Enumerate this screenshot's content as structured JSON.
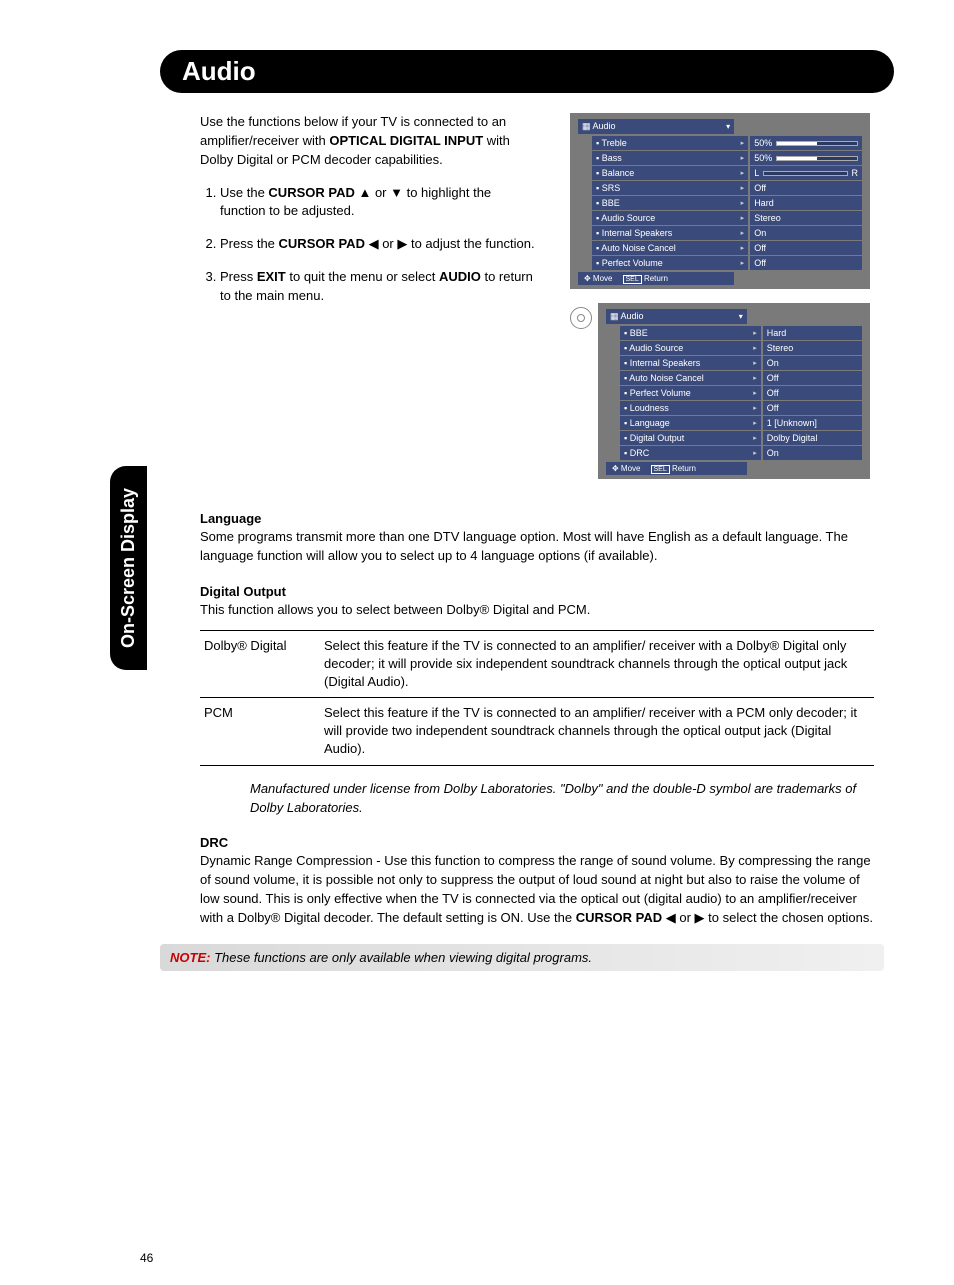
{
  "page": {
    "banner_title": "Audio",
    "side_tab": "On-Screen Display",
    "page_number": "46"
  },
  "intro": {
    "text_pre": "Use the functions below if your TV is connected to an amplifier/receiver with ",
    "text_bold": "OPTICAL DIGITAL INPUT",
    "text_post": " with Dolby Digital or PCM decoder capabilities."
  },
  "steps": [
    {
      "pre": "Use the ",
      "b1": "CURSOR PAD",
      "sym1": " ▲ or ▼ ",
      "post": "to highlight the function to be adjusted."
    },
    {
      "pre": "Press the ",
      "b1": "CURSOR PAD",
      "sym1": " ◀ or ▶ ",
      "post": "to adjust the function."
    },
    {
      "pre": "Press ",
      "b1": "EXIT",
      "mid": " to quit the menu or select ",
      "b2": "AUDIO",
      "post": " to return to the main menu."
    }
  ],
  "osd1": {
    "title": "Audio",
    "rows": [
      {
        "label": "Treble",
        "type": "bar",
        "text": "50%",
        "fill": 50
      },
      {
        "label": "Bass",
        "type": "bar",
        "text": "50%",
        "fill": 50
      },
      {
        "label": "Balance",
        "type": "balance",
        "left": "L",
        "right": "R"
      },
      {
        "label": "SRS",
        "type": "text",
        "text": "Off"
      },
      {
        "label": "BBE",
        "type": "text",
        "text": "Hard"
      },
      {
        "label": "Audio Source",
        "type": "text",
        "text": "Stereo"
      },
      {
        "label": "Internal Speakers",
        "type": "text",
        "text": "On"
      },
      {
        "label": "Auto Noise Cancel",
        "type": "text",
        "text": "Off"
      },
      {
        "label": "Perfect Volume",
        "type": "text",
        "text": "Off"
      }
    ],
    "footer_move": "Move",
    "footer_sel": "SEL",
    "footer_return": "Return"
  },
  "osd2": {
    "title": "Audio",
    "rows": [
      {
        "label": "BBE",
        "type": "text",
        "text": "Hard"
      },
      {
        "label": "Audio Source",
        "type": "text",
        "text": "Stereo"
      },
      {
        "label": "Internal Speakers",
        "type": "text",
        "text": "On"
      },
      {
        "label": "Auto Noise Cancel",
        "type": "text",
        "text": "Off"
      },
      {
        "label": "Perfect Volume",
        "type": "text",
        "text": "Off"
      },
      {
        "label": "Loudness",
        "type": "text",
        "text": "Off"
      },
      {
        "label": "Language",
        "type": "text",
        "text": "1 [Unknown]"
      },
      {
        "label": "Digital Output",
        "type": "text",
        "text": "Dolby Digital"
      },
      {
        "label": "DRC",
        "type": "text",
        "text": "On"
      }
    ],
    "footer_move": "Move",
    "footer_sel": "SEL",
    "footer_return": "Return"
  },
  "sections": {
    "language": {
      "heading": "Language",
      "body": "Some programs transmit more than one DTV language option. Most will have English as a default language. The language function will allow you to select up to 4 language options (if available)."
    },
    "digital_output": {
      "heading": "Digital Output",
      "body": "This function allows you to select between Dolby® Digital and PCM."
    },
    "drc": {
      "heading": "DRC",
      "body_pre": "Dynamic Range Compression - Use this function to compress the range of sound volume. By compressing the range of sound volume, it is possible not only to suppress the output of loud sound at night but also to raise the volume of low sound. This is only effective when the TV is connected via the optical out (digital audio) to an amplifier/receiver with a Dolby® Digital decoder. The default setting is ON. Use the ",
      "body_b": "CURSOR PAD",
      "body_sym": " ◀ or ▶ ",
      "body_post": "to select the chosen options."
    }
  },
  "table": {
    "rows": [
      {
        "name": "Dolby® Digital",
        "desc": "Select this feature if the TV is connected to an amplifier/ receiver with a Dolby® Digital only decoder; it will provide six independent soundtrack channels through the optical output jack (Digital Audio)."
      },
      {
        "name": "PCM",
        "desc": "Select this feature if the TV is connected to an amplifier/ receiver with a PCM only decoder; it will provide two independent soundtrack channels through the optical output jack (Digital Audio)."
      }
    ]
  },
  "license": "Manufactured under license from Dolby Laboratories. \"Dolby\" and the double-D symbol are trademarks of Dolby Laboratories.",
  "note": {
    "label": "NOTE:",
    "text": " These functions are only available when viewing digital programs."
  },
  "style": {
    "osd_bg": "#7a7a7a",
    "osd_row_bg": "#3a4a7a"
  }
}
